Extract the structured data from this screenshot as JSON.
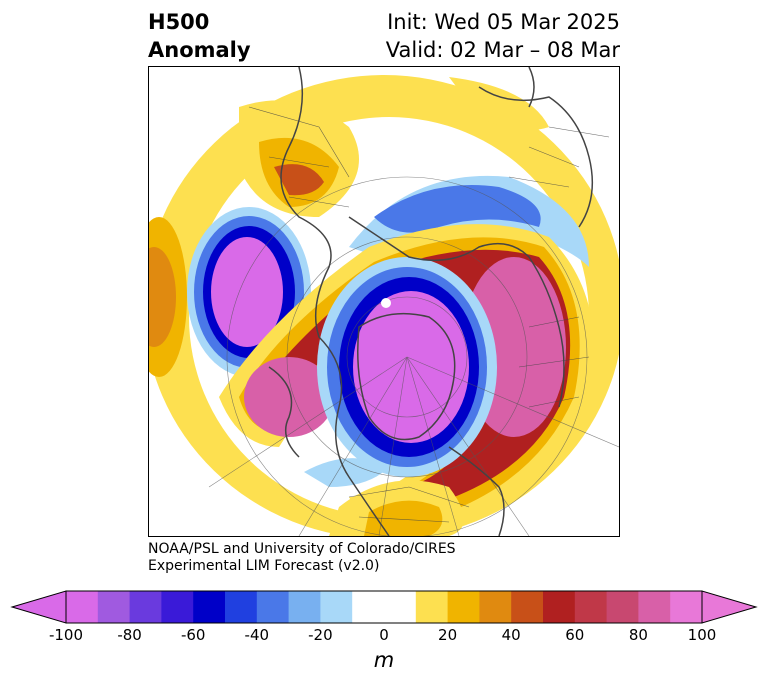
{
  "title": {
    "left_line1": "H500",
    "left_line2": "Anomaly",
    "right_line1": "Init: Wed 05 Mar 2025",
    "right_line2": "Valid: 02 Mar – 08 Mar"
  },
  "credit": {
    "line1": "NOAA/PSL and University of Colorado/CIRES",
    "line2": "Experimental LIM Forecast (v2.0)"
  },
  "colorbar": {
    "unit": "m",
    "min": -100,
    "max": 100,
    "extend": "both",
    "tick_labels": [
      "-100",
      "-80",
      "-60",
      "-40",
      "-20",
      "0",
      "20",
      "40",
      "60",
      "80",
      "100"
    ],
    "tick_values": [
      -100,
      -80,
      -60,
      -40,
      -20,
      0,
      20,
      40,
      60,
      80,
      100
    ],
    "colors": [
      "#d96ae8",
      "#a05ae0",
      "#6a3ade",
      "#3a1ad8",
      "#0000c8",
      "#2040e0",
      "#4a78e8",
      "#78b0f0",
      "#a8d8f8",
      "#ffffff",
      "#ffffff",
      "#fde050",
      "#f0b400",
      "#e08a10",
      "#c85018",
      "#b02020",
      "#c03848",
      "#c84870",
      "#d860a8",
      "#e878d8"
    ]
  },
  "map_colors": {
    "neg_extreme": "#d96ae8",
    "neg_strong": "#0000c8",
    "neg_mid": "#4a78e8",
    "neg_weak": "#a8d8f8",
    "pos_weak": "#fde050",
    "pos_mid": "#f0b400",
    "pos_orange": "#e08a10",
    "pos_dark": "#c85018",
    "pos_red": "#b02020",
    "pos_extreme": "#d860a8",
    "coast": "#444444"
  }
}
